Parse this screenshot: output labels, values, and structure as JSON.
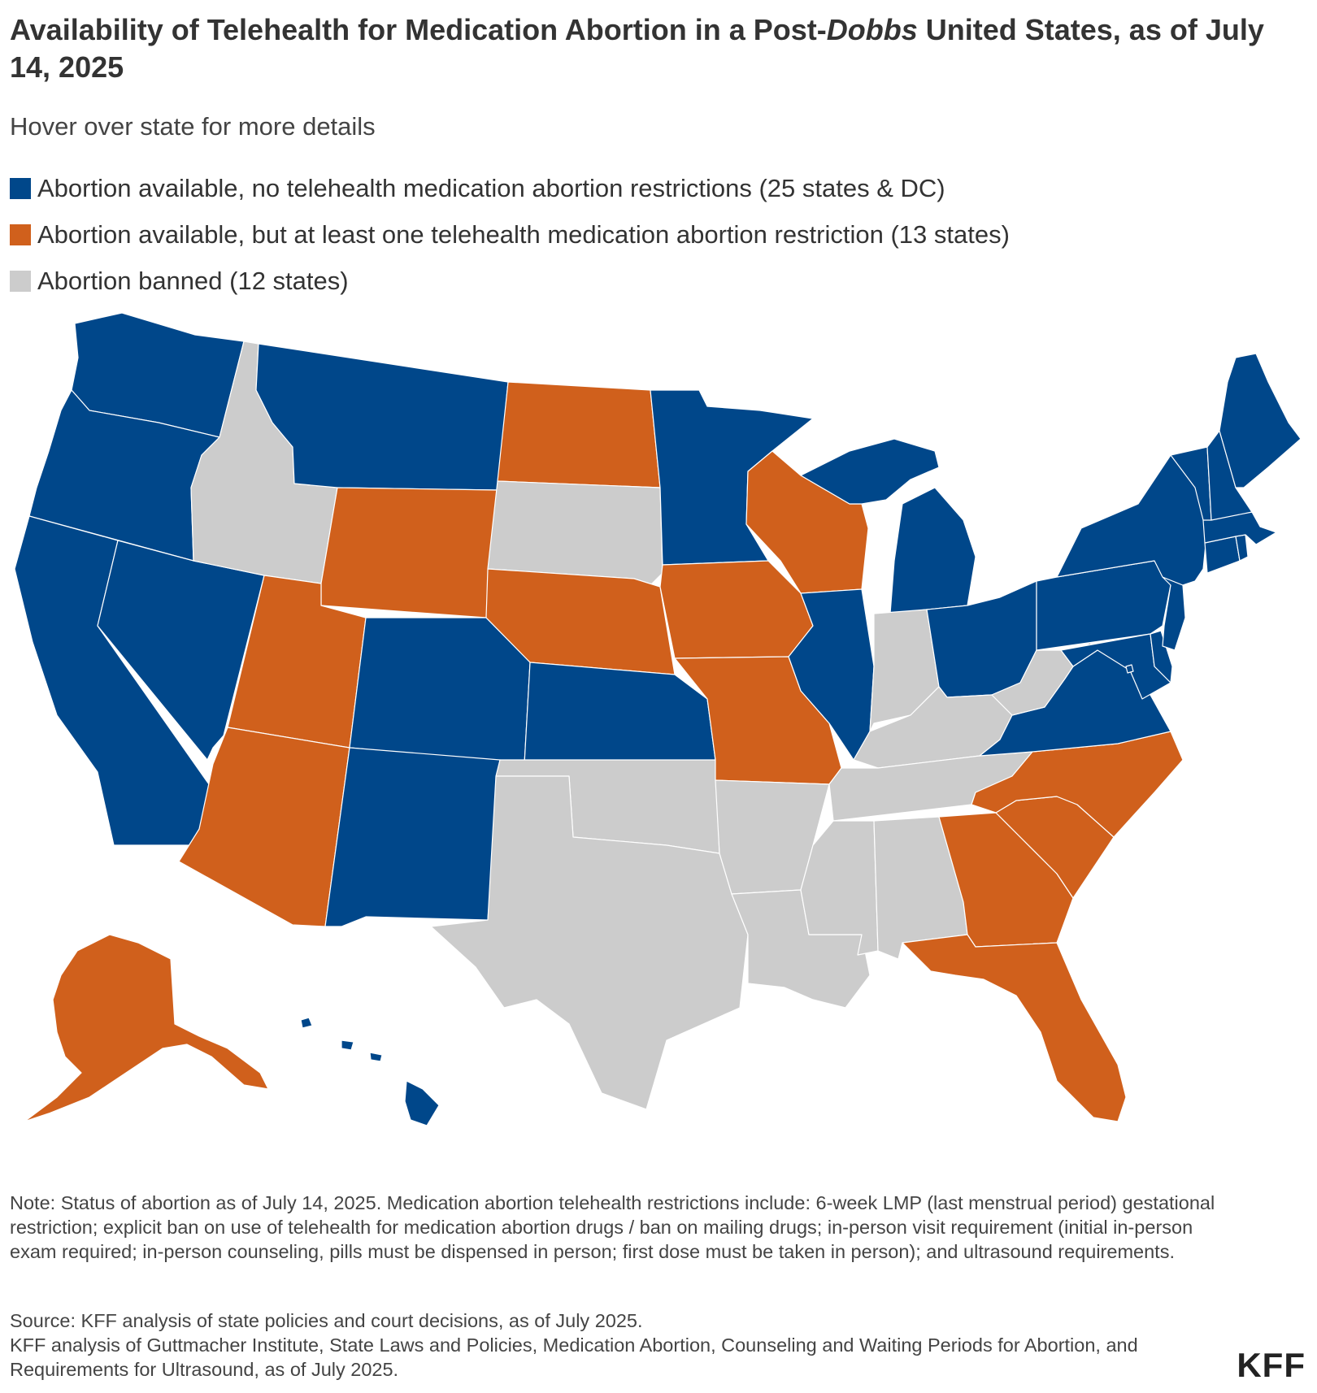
{
  "header": {
    "title_start": "Availability of Telehealth for Medication Abortion in a Post-",
    "title_italic": "Dobbs",
    "title_end": " United States, as of July 14, 2025",
    "subtitle": "Hover over state for more details"
  },
  "legend": {
    "items": [
      {
        "label": "Abortion available, no telehealth medication abortion restrictions (25 states & DC)",
        "color": "#00478a"
      },
      {
        "label": "Abortion available, but at least one telehealth medication abortion restriction (13 states)",
        "color": "#d0601c"
      },
      {
        "label": "Abortion banned (12 states)",
        "color": "#cccccc"
      }
    ]
  },
  "colors": {
    "available": "#00478a",
    "restricted": "#d0601c",
    "banned": "#cccccc",
    "border": "#ffffff"
  },
  "map": {
    "states": {
      "available": [
        "WA",
        "OR",
        "CA",
        "NV",
        "MT",
        "CO",
        "NM",
        "KS",
        "MN",
        "IL",
        "MI",
        "OH",
        "PA",
        "NY",
        "VT",
        "NH",
        "ME",
        "MA",
        "CT",
        "RI",
        "NJ",
        "DE",
        "MD",
        "VA",
        "HI",
        "DC"
      ],
      "restricted": [
        "AK",
        "AZ",
        "UT",
        "WY",
        "ND",
        "NE",
        "IA",
        "WI",
        "MO",
        "NC",
        "SC",
        "GA",
        "FL"
      ],
      "banned": [
        "ID",
        "SD",
        "TX",
        "OK",
        "AR",
        "LA",
        "MS",
        "AL",
        "TN",
        "KY",
        "IN",
        "WV"
      ]
    }
  },
  "footer": {
    "note": "Note: Status of abortion as of July 14, 2025. Medication abortion telehealth restrictions include: 6-week LMP (last menstrual period) gestational restriction; explicit ban on use of telehealth for medication abortion drugs / ban on mailing drugs; in-person visit requirement (initial in-person exam required; in-person counseling, pills must be dispensed in person; first dose must be taken in person); and ultrasound requirements.",
    "source_line1": "Source: KFF analysis of state policies and court decisions, as of July 2025.",
    "source_line2": "KFF analysis of Guttmacher Institute, State Laws and Policies, Medication Abortion, Counseling and Waiting Periods for Abortion, and Requirements for Ultrasound, as of July 2025.",
    "logo": "KFF"
  }
}
